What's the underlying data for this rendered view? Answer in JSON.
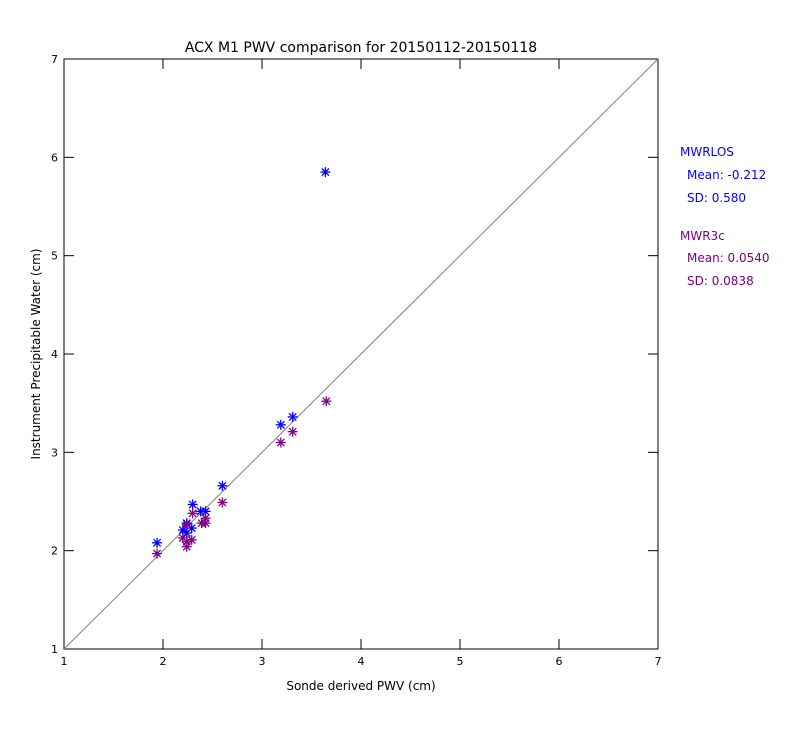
{
  "chart_data": {
    "type": "scatter",
    "title": "ACX M1 PWV comparison for 20150112-20150118",
    "xlabel": "Sonde derived PWV (cm)",
    "ylabel": "Instrument Precipitable Water (cm)",
    "xlim": [
      1,
      7
    ],
    "ylim": [
      1,
      7
    ],
    "xticks": [
      "1",
      "2",
      "3",
      "4",
      "5",
      "6",
      "7"
    ],
    "yticks": [
      "1",
      "2",
      "3",
      "4",
      "5",
      "6",
      "7"
    ],
    "reference_line": "1:1",
    "series": [
      {
        "name": "MWRLOS",
        "color": "#0000ff",
        "mean_label": "Mean: -0.212",
        "sd_label": "SD: 0.580",
        "points": [
          [
            1.94,
            2.08
          ],
          [
            2.3,
            2.47
          ],
          [
            2.6,
            2.66
          ],
          [
            3.19,
            3.28
          ],
          [
            3.31,
            3.36
          ],
          [
            2.38,
            2.4
          ],
          [
            2.43,
            2.4
          ],
          [
            2.24,
            2.28
          ],
          [
            2.29,
            2.23
          ],
          [
            2.24,
            2.18
          ],
          [
            2.2,
            2.21
          ],
          [
            3.64,
            5.85
          ]
        ]
      },
      {
        "name": "MWR3c",
        "color": "#800080",
        "mean_label": "Mean: 0.0540",
        "sd_label": "SD: 0.0838",
        "points": [
          [
            1.94,
            1.97
          ],
          [
            2.3,
            2.38
          ],
          [
            2.6,
            2.49
          ],
          [
            3.19,
            3.1
          ],
          [
            3.31,
            3.21
          ],
          [
            3.65,
            3.52
          ],
          [
            2.43,
            2.33
          ],
          [
            2.39,
            2.28
          ],
          [
            2.43,
            2.28
          ],
          [
            2.24,
            2.27
          ],
          [
            2.2,
            2.13
          ],
          [
            2.29,
            2.11
          ],
          [
            2.24,
            2.04
          ],
          [
            2.24,
            2.09
          ]
        ]
      }
    ]
  }
}
